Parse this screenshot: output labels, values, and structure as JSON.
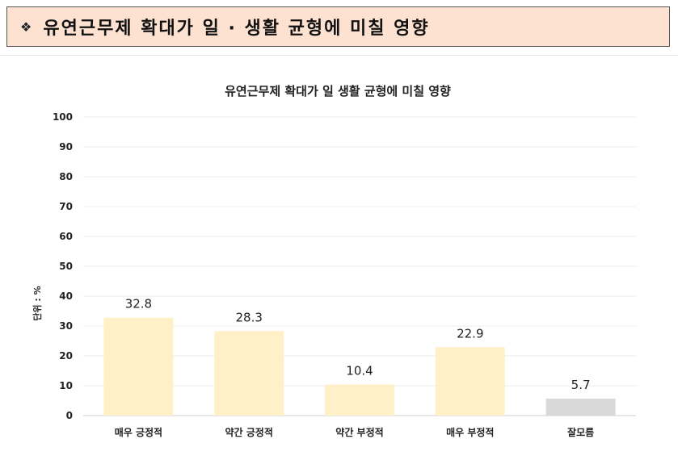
{
  "header": {
    "bullet_icon": "diamond-bullet-icon",
    "title": "유연근무제 확대가 일 · 생활 균형에 미칠 영향",
    "background_color": "#fde2d2"
  },
  "chart_data": {
    "type": "bar",
    "title": "유연근무제 확대가 일 생활 균형에 미칠 영향",
    "ylabel": "단위 : %",
    "xlabel": "",
    "ylim": [
      0,
      100
    ],
    "yticks": [
      0,
      10,
      20,
      30,
      40,
      50,
      60,
      70,
      80,
      90,
      100
    ],
    "grid": true,
    "categories": [
      "매우 긍정적",
      "약간 긍정적",
      "약간 부정적",
      "매우 부정적",
      "잘모름"
    ],
    "values": [
      32.8,
      28.3,
      10.4,
      22.9,
      5.7
    ],
    "value_labels": [
      "32.8",
      "28.3",
      "10.4",
      "22.9",
      "5.7"
    ],
    "bar_colors": [
      "#fff0c8",
      "#fff0c8",
      "#fff0c8",
      "#fff0c8",
      "#d9d9d9"
    ]
  }
}
